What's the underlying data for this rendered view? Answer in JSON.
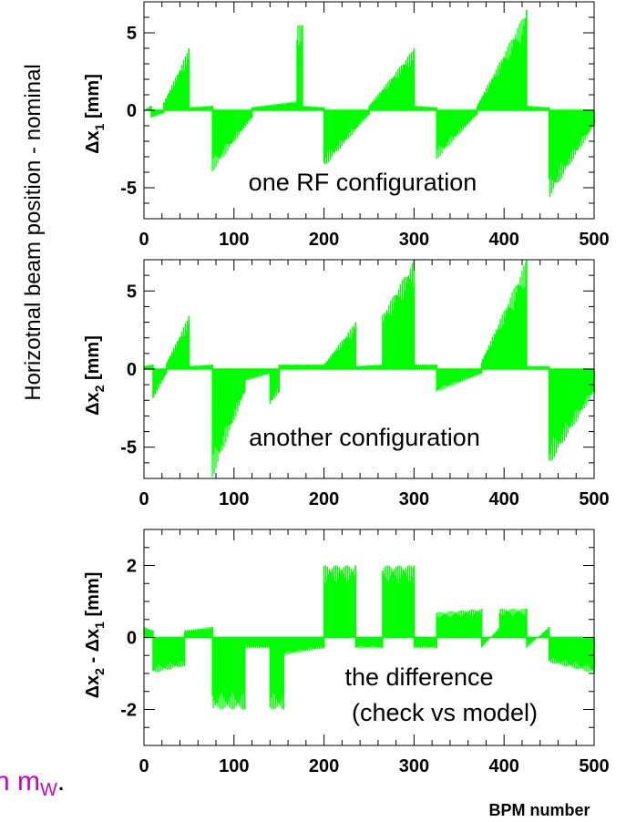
{
  "figure": {
    "side_label": "Horizotnal beam position - nominal",
    "x_axis_label": "BPM number",
    "left_fragment": {
      "text": "n m",
      "subscript": "W",
      "suffix": ".",
      "color": "#cc00cc"
    },
    "series_color": "#00ff00"
  },
  "chart_data": [
    {
      "type": "bar",
      "ylabel": {
        "main": "Δx",
        "sub": "1",
        "unit": " [mm]"
      },
      "annotation": "one RF configuration",
      "xlim": [
        0,
        500
      ],
      "ylim": [
        -7,
        7
      ],
      "xticks": [
        0,
        100,
        200,
        300,
        400,
        500
      ],
      "xtick_labels": [
        "0",
        "100",
        "200",
        "300",
        "400",
        "500"
      ],
      "yticks": [
        -5,
        0,
        5
      ],
      "ytick_labels": [
        "-5",
        "0",
        "5"
      ],
      "segments": [
        {
          "x": [
            0,
            8
          ],
          "y": [
            0,
            0.3
          ]
        },
        {
          "x": [
            8,
            22
          ],
          "y": [
            -0.5,
            -0.2
          ]
        },
        {
          "x": [
            22,
            50
          ],
          "y": [
            0.5,
            4.0
          ]
        },
        {
          "x": [
            50,
            76
          ],
          "y": [
            0.2,
            0.3
          ]
        },
        {
          "x": [
            76,
            120
          ],
          "y": [
            -4.0,
            -0.5
          ]
        },
        {
          "x": [
            120,
            170
          ],
          "y": [
            0.2,
            0.6
          ]
        },
        {
          "x": [
            170,
            176
          ],
          "y": [
            5.5,
            5.5
          ]
        },
        {
          "x": [
            176,
            200
          ],
          "y": [
            0.3,
            0.2
          ]
        },
        {
          "x": [
            200,
            250
          ],
          "y": [
            -3.7,
            -0.3
          ]
        },
        {
          "x": [
            250,
            300
          ],
          "y": [
            0.3,
            4.0
          ]
        },
        {
          "x": [
            300,
            325
          ],
          "y": [
            0.3,
            0.2
          ]
        },
        {
          "x": [
            325,
            370
          ],
          "y": [
            -3.2,
            -0.3
          ]
        },
        {
          "x": [
            370,
            425
          ],
          "y": [
            0.3,
            6.5
          ]
        },
        {
          "x": [
            425,
            450
          ],
          "y": [
            0.3,
            0.2
          ]
        },
        {
          "x": [
            450,
            500
          ],
          "y": [
            -5.7,
            -1.0
          ]
        }
      ]
    },
    {
      "type": "bar",
      "ylabel": {
        "main": "Δx",
        "sub": "2",
        "unit": " [mm]"
      },
      "annotation": "another configuration",
      "xlim": [
        0,
        500
      ],
      "ylim": [
        -7,
        7
      ],
      "xticks": [
        0,
        100,
        200,
        300,
        400,
        500
      ],
      "xtick_labels": [
        "0",
        "100",
        "200",
        "300",
        "400",
        "500"
      ],
      "yticks": [
        -5,
        0,
        5
      ],
      "ytick_labels": [
        "-5",
        "0",
        "5"
      ],
      "segments": [
        {
          "x": [
            0,
            10
          ],
          "y": [
            0.2,
            0.3
          ]
        },
        {
          "x": [
            10,
            25
          ],
          "y": [
            -2.0,
            -0.3
          ]
        },
        {
          "x": [
            25,
            50
          ],
          "y": [
            0.4,
            3.4
          ]
        },
        {
          "x": [
            50,
            76
          ],
          "y": [
            0.2,
            0.3
          ]
        },
        {
          "x": [
            76,
            112
          ],
          "y": [
            -7.0,
            -1.5
          ]
        },
        {
          "x": [
            112,
            140
          ],
          "y": [
            -0.8,
            -0.3
          ]
        },
        {
          "x": [
            140,
            150
          ],
          "y": [
            -2.3,
            -1.5
          ]
        },
        {
          "x": [
            150,
            200
          ],
          "y": [
            0.3,
            0.3
          ]
        },
        {
          "x": [
            200,
            235
          ],
          "y": [
            0.3,
            3.0
          ]
        },
        {
          "x": [
            235,
            265
          ],
          "y": [
            0.2,
            0.3
          ]
        },
        {
          "x": [
            265,
            300
          ],
          "y": [
            3.5,
            7.0
          ]
        },
        {
          "x": [
            300,
            325
          ],
          "y": [
            0.3,
            0.3
          ]
        },
        {
          "x": [
            325,
            375
          ],
          "y": [
            -1.5,
            -0.3
          ]
        },
        {
          "x": [
            375,
            425
          ],
          "y": [
            0.5,
            7.0
          ]
        },
        {
          "x": [
            425,
            450
          ],
          "y": [
            0.2,
            0.2
          ]
        },
        {
          "x": [
            450,
            500
          ],
          "y": [
            -6.2,
            -1.5
          ]
        }
      ]
    },
    {
      "type": "bar",
      "ylabel": {
        "main": "Δx",
        "sub": "2",
        "mid": " - Δx",
        "sub2": "1",
        "unit": " [mm]"
      },
      "annotation": [
        "the difference",
        "(check vs model)"
      ],
      "xlim": [
        0,
        500
      ],
      "ylim": [
        -3,
        3
      ],
      "xticks": [
        0,
        100,
        200,
        300,
        400,
        500
      ],
      "xtick_labels": [
        "0",
        "100",
        "200",
        "300",
        "400",
        "500"
      ],
      "yticks": [
        -2,
        0,
        2
      ],
      "ytick_labels": [
        "-2",
        "0",
        "2"
      ],
      "segments": [
        {
          "x": [
            0,
            10
          ],
          "y": [
            0.3,
            0.2
          ]
        },
        {
          "x": [
            10,
            45
          ],
          "y": [
            -1.0,
            -0.8
          ]
        },
        {
          "x": [
            45,
            76
          ],
          "y": [
            0.2,
            0.3
          ]
        },
        {
          "x": [
            76,
            112
          ],
          "y": [
            -2.0,
            -2.0
          ]
        },
        {
          "x": [
            112,
            140
          ],
          "y": [
            -0.3,
            -0.3
          ]
        },
        {
          "x": [
            140,
            155
          ],
          "y": [
            -2.0,
            -2.0
          ]
        },
        {
          "x": [
            155,
            200
          ],
          "y": [
            -0.5,
            -0.3
          ]
        },
        {
          "x": [
            200,
            235
          ],
          "y": [
            2.0,
            2.0
          ]
        },
        {
          "x": [
            235,
            265
          ],
          "y": [
            -0.3,
            -0.3
          ]
        },
        {
          "x": [
            265,
            300
          ],
          "y": [
            2.0,
            2.0
          ]
        },
        {
          "x": [
            300,
            325
          ],
          "y": [
            -0.3,
            -0.3
          ]
        },
        {
          "x": [
            325,
            375
          ],
          "y": [
            0.7,
            0.8
          ]
        },
        {
          "x": [
            375,
            395
          ],
          "y": [
            -0.3,
            0.3
          ]
        },
        {
          "x": [
            395,
            425
          ],
          "y": [
            0.8,
            0.8
          ]
        },
        {
          "x": [
            425,
            450
          ],
          "y": [
            -0.3,
            0.3
          ]
        },
        {
          "x": [
            450,
            500
          ],
          "y": [
            -0.7,
            -1.0
          ]
        }
      ]
    }
  ]
}
